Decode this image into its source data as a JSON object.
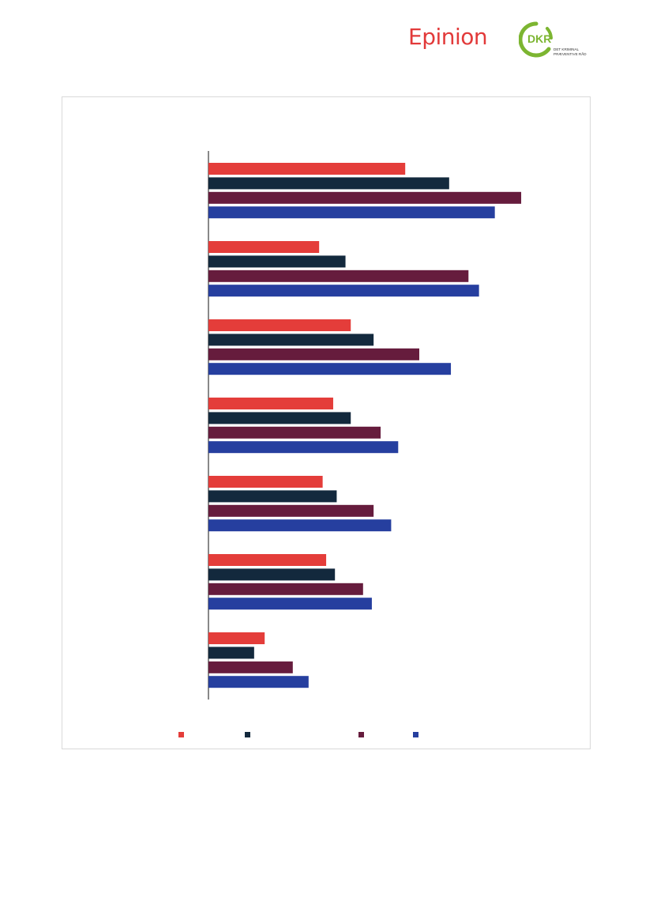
{
  "header": {
    "brand_left": "Epinion",
    "brand_right_mark": "DKR",
    "brand_right_line1": "DET KRIMINAL",
    "brand_right_line2": "PRÆVENTIVE RÅD"
  },
  "colors": {
    "series": [
      "#e43d3a",
      "#13293d",
      "#661c3d",
      "#263f9f"
    ],
    "axis": "#111111",
    "brand_red": "#e23a3a",
    "brand_green": "#7cb531"
  },
  "chart_data": {
    "type": "bar",
    "orientation": "horizontal",
    "title": "",
    "xlabel": "",
    "ylabel": "",
    "categories": [
      "",
      "",
      "",
      "",
      "",
      "",
      ""
    ],
    "series": [
      {
        "values": [
          56,
          31.5,
          40.5,
          35.5,
          32.5,
          33.5,
          16
        ]
      },
      {
        "values": [
          68.5,
          39,
          47,
          40.5,
          36.5,
          36,
          13
        ]
      },
      {
        "values": [
          89,
          74,
          60,
          49,
          47,
          44,
          24
        ]
      },
      {
        "values": [
          81.5,
          77,
          69,
          54,
          52,
          46.5,
          28.5
        ]
      }
    ],
    "xlim": [
      0,
      100
    ],
    "grid": false,
    "legend_position": "bottom"
  }
}
